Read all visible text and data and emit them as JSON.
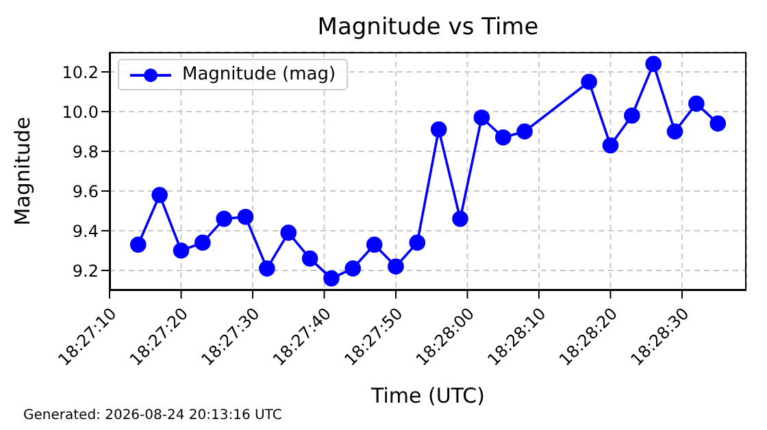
{
  "chart_data": {
    "type": "line",
    "title": "Magnitude vs Time",
    "xlabel": "Time (UTC)",
    "ylabel": "Magnitude",
    "annotations": [
      "Generated: 2026-08-24 20:13:16 UTC"
    ],
    "x": [
      18.453889,
      18.454722,
      18.455556,
      18.456389,
      18.457222,
      18.458056,
      18.458889,
      18.459722,
      18.460556,
      18.461389,
      18.462222,
      18.463056,
      18.463889,
      18.464722,
      18.465556,
      18.466389,
      18.467222,
      18.468056,
      18.468889,
      18.471389,
      18.472222,
      18.473056,
      18.473889,
      18.474722,
      18.475556,
      18.476389
    ],
    "series": [
      {
        "name": "Magnitude (mag)",
        "color": "#0000ff",
        "values": [
          9.33,
          9.58,
          9.3,
          9.34,
          9.46,
          9.47,
          9.21,
          9.39,
          9.26,
          9.16,
          9.21,
          9.33,
          9.22,
          9.34,
          9.91,
          9.46,
          9.97,
          9.87,
          9.9,
          10.15,
          9.83,
          9.98,
          10.24,
          9.9,
          10.04,
          9.94
        ]
      }
    ],
    "xlim": [
      18.452778,
      18.4775
    ],
    "xticks": [
      {
        "value": 18.452778,
        "label": "18:27:10"
      },
      {
        "value": 18.455556,
        "label": "18:27:20"
      },
      {
        "value": 18.458333,
        "label": "18:27:30"
      },
      {
        "value": 18.461111,
        "label": "18:27:40"
      },
      {
        "value": 18.463889,
        "label": "18:27:50"
      },
      {
        "value": 18.466667,
        "label": "18:28:00"
      },
      {
        "value": 18.469444,
        "label": "18:28:10"
      },
      {
        "value": 18.472222,
        "label": "18:28:20"
      },
      {
        "value": 18.475,
        "label": "18:28:30"
      }
    ],
    "ylim": [
      9.1,
      10.3
    ],
    "yticks": [
      9.2,
      9.4,
      9.6,
      9.8,
      {
        "value": 10,
        "label": "10.0"
      },
      10.2
    ],
    "grid": true,
    "legend": "top left",
    "marker": "circle",
    "line_style": "solid"
  }
}
